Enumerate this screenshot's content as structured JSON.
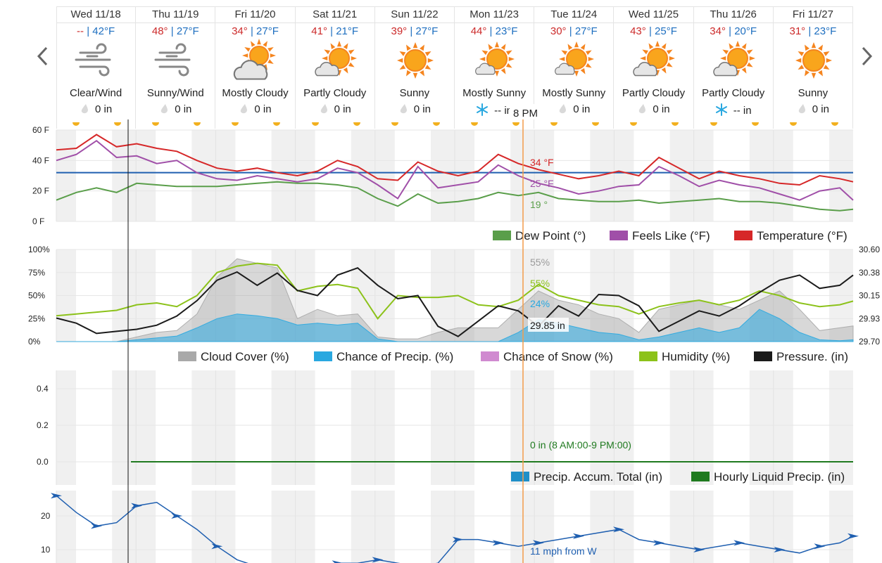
{
  "nav": {
    "prev_icon": "chevron-left-icon",
    "next_icon": "chevron-right-icon"
  },
  "days": [
    {
      "name": "Wed 11/18",
      "hi": "--",
      "lo": "42°F",
      "icon": "wind-icon",
      "cond": "Clear/Wind",
      "precip": "0 in",
      "precip_icon": "raindrop-icon"
    },
    {
      "name": "Thu 11/19",
      "hi": "48°",
      "lo": "27°F",
      "icon": "wind-icon",
      "cond": "Sunny/Wind",
      "precip": "0 in",
      "precip_icon": "raindrop-icon"
    },
    {
      "name": "Fri 11/20",
      "hi": "34°",
      "lo": "27°F",
      "icon": "mostly-cloudy-icon",
      "cond": "Mostly Cloudy",
      "precip": "0 in",
      "precip_icon": "raindrop-icon"
    },
    {
      "name": "Sat 11/21",
      "hi": "41°",
      "lo": "21°F",
      "icon": "partly-cloudy-icon",
      "cond": "Partly Cloudy",
      "precip": "0 in",
      "precip_icon": "raindrop-icon"
    },
    {
      "name": "Sun 11/22",
      "hi": "39°",
      "lo": "27°F",
      "icon": "sunny-icon",
      "cond": "Sunny",
      "precip": "0 in",
      "precip_icon": "raindrop-icon"
    },
    {
      "name": "Mon 11/23",
      "hi": "44°",
      "lo": "23°F",
      "icon": "mostly-sunny-icon",
      "cond": "Mostly Sunny",
      "precip": "-- in",
      "precip_icon": "snowflake-icon"
    },
    {
      "name": "Tue 11/24",
      "hi": "30°",
      "lo": "27°F",
      "icon": "mostly-sunny-icon",
      "cond": "Mostly Sunny",
      "precip": "0 in",
      "precip_icon": "raindrop-icon"
    },
    {
      "name": "Wed 11/25",
      "hi": "43°",
      "lo": "25°F",
      "icon": "partly-cloudy-icon",
      "cond": "Partly Cloudy",
      "precip": "0 in",
      "precip_icon": "raindrop-icon"
    },
    {
      "name": "Thu 11/26",
      "hi": "34°",
      "lo": "20°F",
      "icon": "partly-cloudy-icon",
      "cond": "Partly Cloudy",
      "precip": "-- in",
      "precip_icon": "snowflake-icon"
    },
    {
      "name": "Fri 11/27",
      "hi": "31°",
      "lo": "23°F",
      "icon": "sunny-icon",
      "cond": "Sunny",
      "precip": "0 in",
      "precip_icon": "raindrop-icon"
    }
  ],
  "cursor_label": "8 PM",
  "colors": {
    "temperature": "#d62728",
    "feels_like": "#a04fa8",
    "dew_point": "#5a9e4a",
    "cloud": "#a9a9a9",
    "precip": "#29a8e0",
    "snow": "#d08ad0",
    "humidity": "#8cc21a",
    "pressure": "#1b1b1b",
    "freezing": "#1f5fb0",
    "accum": "#1f8fc8",
    "hourly": "#1f7a1f",
    "wind": "#1f5fb0",
    "cursor": "#f39c4a"
  },
  "chart_data": [
    {
      "type": "line",
      "ylim": [
        0,
        60
      ],
      "yticks": [
        "60 F",
        "40 F",
        "20 F",
        "0 F"
      ],
      "legend": [
        "Dew Point (°)",
        "Feels Like (°F)",
        "Temperature (°F)"
      ],
      "freezing_line": 32,
      "cursor_values": {
        "temperature": "34 °F",
        "feels_like": "25 °F",
        "dew_point": "19 °"
      },
      "x_hours": [
        0,
        6,
        12,
        18,
        24,
        30,
        36,
        42,
        48,
        54,
        60,
        66,
        72,
        78,
        84,
        90,
        96,
        102,
        108,
        114,
        120,
        126,
        132,
        138,
        144,
        150,
        156,
        162,
        168,
        174,
        180,
        186,
        192,
        198,
        204,
        210,
        216,
        222,
        228,
        234,
        238
      ],
      "series": [
        {
          "name": "Temperature (°F)",
          "values": [
            47,
            48,
            57,
            49,
            51,
            48,
            46,
            40,
            35,
            33,
            35,
            32,
            30,
            33,
            40,
            36,
            28,
            27,
            39,
            33,
            30,
            33,
            44,
            38,
            34,
            31,
            28,
            30,
            33,
            30,
            42,
            35,
            28,
            33,
            30,
            28,
            25,
            24,
            30,
            28,
            26
          ]
        },
        {
          "name": "Feels Like (°F)",
          "values": [
            40,
            44,
            53,
            42,
            43,
            38,
            40,
            32,
            28,
            27,
            30,
            28,
            26,
            28,
            35,
            32,
            24,
            15,
            36,
            22,
            24,
            26,
            37,
            30,
            25,
            22,
            18,
            20,
            23,
            24,
            36,
            30,
            23,
            27,
            24,
            22,
            18,
            14,
            20,
            22,
            14
          ]
        },
        {
          "name": "Dew Point (°)",
          "values": [
            14,
            19,
            22,
            19,
            25,
            24,
            23,
            23,
            23,
            24,
            25,
            26,
            25,
            25,
            24,
            22,
            15,
            10,
            18,
            12,
            13,
            15,
            19,
            17,
            19,
            15,
            14,
            13,
            13,
            14,
            12,
            13,
            14,
            15,
            13,
            13,
            12,
            10,
            8,
            7,
            8
          ]
        }
      ]
    },
    {
      "type": "line",
      "ylim": [
        0,
        100
      ],
      "yticks_left": [
        "100%",
        "75%",
        "50%",
        "25%",
        "0%"
      ],
      "yticks_right": [
        "30.60",
        "30.38",
        "30.15",
        "29.93",
        "29.70"
      ],
      "pressure_lim": [
        29.7,
        30.6
      ],
      "legend": [
        "Cloud Cover (%)",
        "Chance of Precip. (%)",
        "Chance of Snow (%)",
        "Humidity (%)",
        "Pressure. (in)"
      ],
      "cursor_values": {
        "cloud": "55%",
        "humidity": "55%",
        "precip": "24%",
        "pressure": "29.85 in"
      },
      "x_hours": [
        0,
        6,
        12,
        18,
        24,
        30,
        36,
        42,
        48,
        54,
        60,
        66,
        72,
        78,
        84,
        90,
        96,
        102,
        108,
        114,
        120,
        126,
        132,
        138,
        144,
        150,
        156,
        162,
        168,
        174,
        180,
        186,
        192,
        198,
        204,
        210,
        216,
        222,
        228,
        234,
        238
      ],
      "series": [
        {
          "name": "Cloud Cover (%)",
          "values": [
            0,
            0,
            0,
            0,
            5,
            10,
            12,
            30,
            70,
            90,
            85,
            80,
            25,
            35,
            28,
            30,
            5,
            3,
            3,
            10,
            15,
            15,
            15,
            35,
            55,
            45,
            40,
            30,
            25,
            10,
            35,
            40,
            45,
            40,
            35,
            45,
            55,
            35,
            12,
            15,
            17
          ]
        },
        {
          "name": "Chance of Precip. (%)",
          "values": [
            0,
            0,
            0,
            0,
            2,
            4,
            6,
            15,
            25,
            30,
            28,
            25,
            18,
            20,
            18,
            20,
            3,
            0,
            0,
            0,
            0,
            0,
            0,
            10,
            24,
            20,
            15,
            10,
            8,
            2,
            5,
            10,
            15,
            10,
            15,
            35,
            25,
            10,
            2,
            1,
            2
          ]
        },
        {
          "name": "Humidity (%)",
          "values": [
            28,
            30,
            32,
            34,
            40,
            42,
            38,
            50,
            75,
            82,
            85,
            83,
            55,
            60,
            62,
            58,
            25,
            50,
            48,
            48,
            50,
            40,
            38,
            45,
            62,
            50,
            45,
            40,
            38,
            30,
            38,
            42,
            45,
            40,
            45,
            55,
            50,
            42,
            38,
            40,
            44
          ]
        },
        {
          "name": "Pressure. (in)",
          "values": [
            29.93,
            29.88,
            29.78,
            29.8,
            29.82,
            29.86,
            29.95,
            30.1,
            30.3,
            30.38,
            30.25,
            30.37,
            30.2,
            30.15,
            30.35,
            30.42,
            30.25,
            30.12,
            30.15,
            29.85,
            29.75,
            29.9,
            30.05,
            30.0,
            29.85,
            30.05,
            29.95,
            30.16,
            30.15,
            30.05,
            29.8,
            29.9,
            30.0,
            29.95,
            30.05,
            30.18,
            30.3,
            30.35,
            30.22,
            30.25,
            30.35
          ]
        }
      ]
    },
    {
      "type": "line",
      "ylim": [
        0,
        0.5
      ],
      "yticks": [
        "0.4",
        "0.2",
        "0.0"
      ],
      "legend": [
        "Precip. Accum. Total (in)",
        "Hourly Liquid Precip. (in)"
      ],
      "cursor_values": {
        "hourly": "0 in (8 AM:00-9 PM:00)"
      },
      "series": [
        {
          "name": "Hourly Liquid Precip. (in)",
          "values": [
            0,
            0,
            0,
            0,
            0
          ]
        }
      ]
    },
    {
      "type": "line",
      "ylim": [
        0,
        30
      ],
      "yticks": [
        "20",
        "10"
      ],
      "cursor_values": {
        "wind": "11 mph from W"
      },
      "x_hours": [
        0,
        6,
        12,
        18,
        24,
        30,
        36,
        42,
        48,
        54,
        60,
        66,
        72,
        78,
        84,
        90,
        96,
        102,
        108,
        114,
        120,
        126,
        132,
        138,
        144,
        150,
        156,
        162,
        168,
        174,
        180,
        186,
        192,
        198,
        204,
        210,
        216,
        222,
        228,
        234,
        238
      ],
      "series": [
        {
          "name": "Wind (mph)",
          "values": [
            26,
            21,
            17,
            18,
            23,
            24,
            20,
            16,
            11,
            7,
            5,
            4,
            5,
            5,
            6,
            6,
            7,
            6,
            5,
            6,
            13,
            13,
            12,
            11,
            12,
            13,
            14,
            15,
            16,
            13,
            12,
            11,
            10,
            11,
            12,
            11,
            10,
            9,
            11,
            12,
            14
          ]
        }
      ]
    }
  ]
}
